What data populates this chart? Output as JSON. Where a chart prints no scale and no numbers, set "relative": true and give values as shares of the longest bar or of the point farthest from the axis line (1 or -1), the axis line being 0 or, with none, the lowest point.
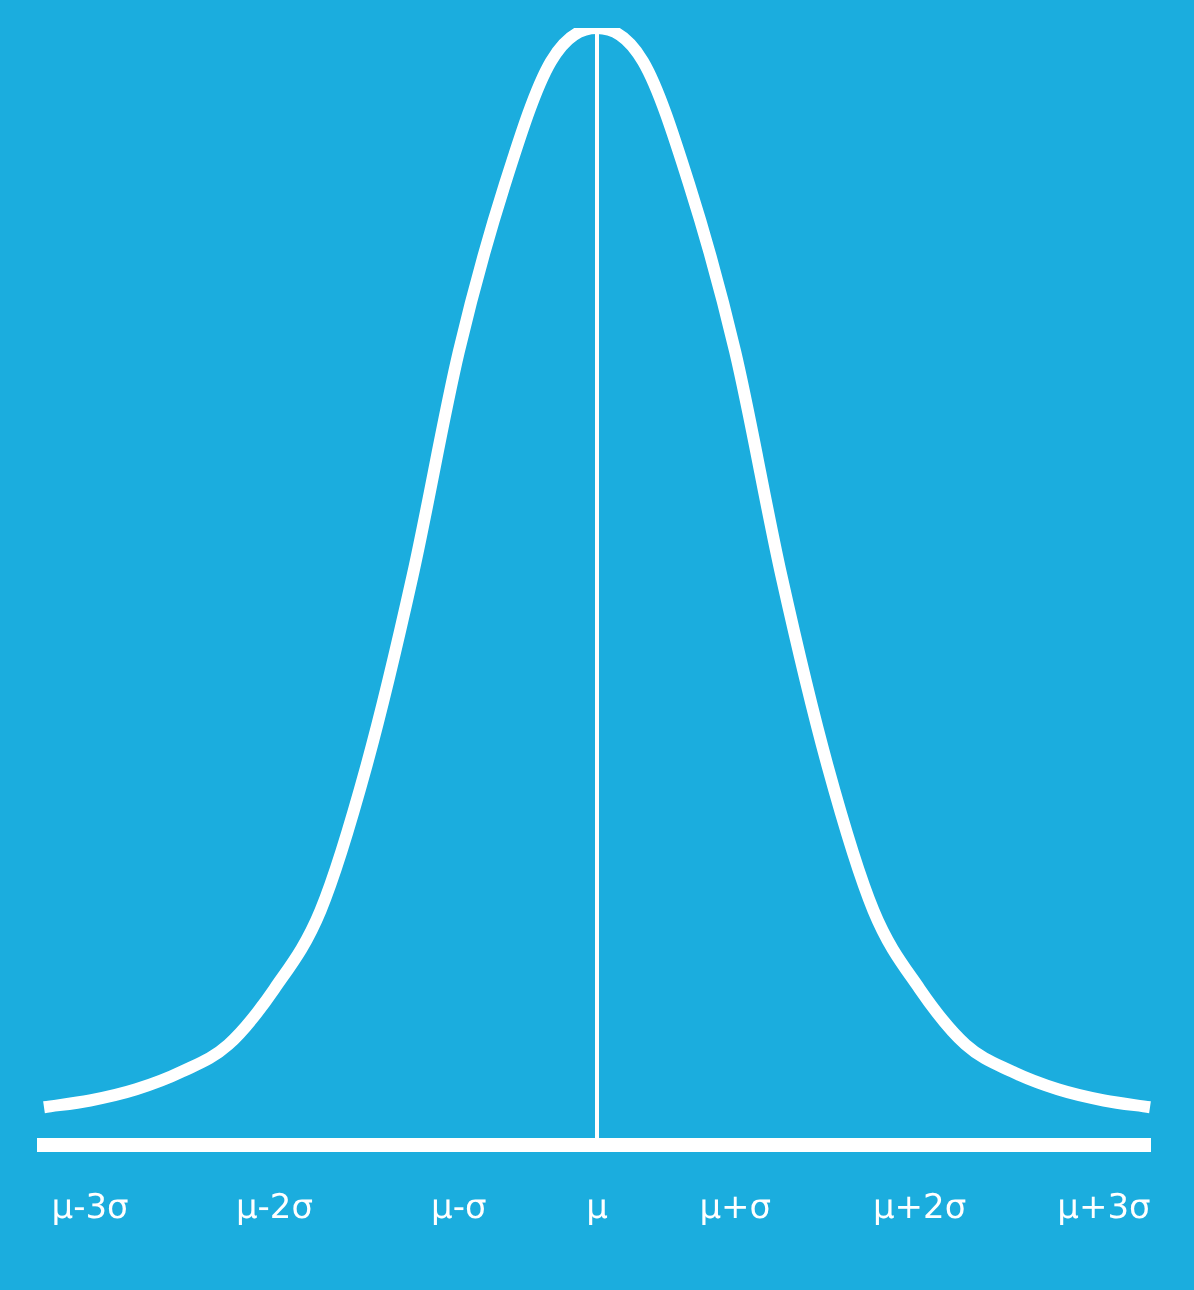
{
  "chart_data": {
    "type": "line",
    "relative": true,
    "categories": [
      null,
      "μ-3σ",
      null,
      null,
      null,
      "μ-2σ",
      null,
      null,
      null,
      "μ-σ",
      null,
      null,
      "μ",
      null,
      null,
      "μ+σ",
      null,
      null,
      null,
      "μ+2σ",
      null,
      null,
      null,
      "μ+3σ",
      null
    ],
    "series": [
      {
        "color": "#ffffff",
        "values": [
          0.034,
          0.04,
          0.05,
          0.066,
          0.09,
          0.14,
          0.21,
          0.34,
          0.51,
          0.71,
          0.86,
          0.97,
          1,
          0.97,
          0.86,
          0.71,
          0.51,
          0.34,
          0.21,
          0.14,
          0.09,
          0.066,
          0.05,
          0.04,
          0.034
        ]
      }
    ],
    "ref_lines": [
      {
        "axis": "x",
        "value": "μ",
        "color": "#ffffff"
      }
    ],
    "grid": false,
    "legend": false,
    "marker": "none",
    "line_style": "solid"
  }
}
